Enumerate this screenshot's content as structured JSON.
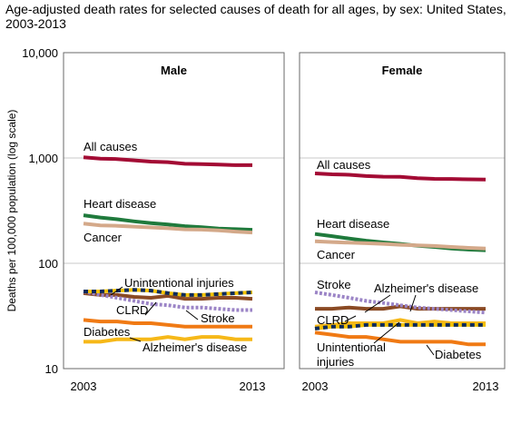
{
  "title": "Age-adjusted death rates for selected causes of death for all ages, by sex: United States, 2003-2013",
  "colors": {
    "all_causes": "#a30b34",
    "heart_disease": "#1f7a3c",
    "cancer": "#d4a98a",
    "unintentional_injuries": "#0d2a5c",
    "unintentional_injuries_dash": "#f2c200",
    "clrd": "#8a4a24",
    "stroke": "#9b84c6",
    "diabetes": "#f07a14",
    "alzheimers": "#f6b818",
    "grid": "#c8c8c8",
    "frame": "#6a6a6a"
  },
  "chart_data": [
    {
      "type": "line",
      "panel": "Male",
      "title": "Male",
      "ylabel": "Deaths per 100,000 population (log scale)",
      "y_scale": "log",
      "ylim": [
        10,
        10000
      ],
      "y_ticks": [
        "10",
        "100",
        "1,000",
        "10,000"
      ],
      "y_tick_values": [
        10,
        100,
        1000,
        10000
      ],
      "x_ticks": [
        "2003",
        "2013"
      ],
      "x": [
        2003,
        2004,
        2005,
        2006,
        2007,
        2008,
        2009,
        2010,
        2011,
        2012,
        2013
      ],
      "grid": true,
      "series": [
        {
          "name": "All causes",
          "key": "all_causes",
          "values": [
            1015,
            986,
            976,
            949,
            923,
            912,
            880,
            875,
            865,
            855,
            855
          ]
        },
        {
          "name": "Heart disease",
          "key": "heart_disease",
          "values": [
            286,
            272,
            262,
            250,
            241,
            234,
            225,
            220,
            214,
            211,
            208
          ]
        },
        {
          "name": "Cancer",
          "key": "cancer",
          "values": [
            238,
            229,
            227,
            223,
            219,
            215,
            210,
            209,
            205,
            200,
            196
          ]
        },
        {
          "name": "Unintentional injuries",
          "key": "unintentional_injuries",
          "values": [
            54,
            54,
            55,
            56,
            55,
            52,
            50,
            50,
            51,
            52,
            53
          ]
        },
        {
          "name": "CLRD",
          "key": "clrd",
          "values": [
            52,
            50,
            50,
            48,
            47,
            49,
            46,
            46,
            47,
            47,
            46
          ]
        },
        {
          "name": "Stroke",
          "key": "stroke",
          "values": [
            54,
            50,
            47,
            44,
            41,
            40,
            38,
            38,
            37,
            36,
            36
          ]
        },
        {
          "name": "Diabetes",
          "key": "diabetes",
          "values": [
            29,
            28,
            28,
            27,
            27,
            26,
            25,
            25,
            25,
            25,
            25
          ]
        },
        {
          "name": "Alzheimer's disease",
          "key": "alzheimers",
          "values": [
            18,
            18,
            19,
            19,
            19,
            20,
            19,
            20,
            20,
            19,
            19
          ]
        }
      ],
      "annotations": [
        {
          "text": "All causes",
          "series": "All causes"
        },
        {
          "text": "Heart disease",
          "series": "Heart disease"
        },
        {
          "text": "Cancer",
          "series": "Cancer"
        },
        {
          "text": "Unintentional injuries",
          "series": "Unintentional injuries"
        },
        {
          "text": "CLRD",
          "series": "CLRD"
        },
        {
          "text": "Stroke",
          "series": "Stroke"
        },
        {
          "text": "Diabetes",
          "series": "Diabetes"
        },
        {
          "text": "Alzheimer's disease",
          "series": "Alzheimer's disease"
        }
      ]
    },
    {
      "type": "line",
      "panel": "Female",
      "title": "Female",
      "y_scale": "log",
      "ylim": [
        10,
        10000
      ],
      "x_ticks": [
        "2003",
        "2013"
      ],
      "x": [
        2003,
        2004,
        2005,
        2006,
        2007,
        2008,
        2009,
        2010,
        2011,
        2012,
        2013
      ],
      "grid": true,
      "series": [
        {
          "name": "All causes",
          "key": "all_causes",
          "values": [
            714,
            700,
            692,
            674,
            664,
            662,
            642,
            634,
            632,
            627,
            624
          ]
        },
        {
          "name": "Heart disease",
          "key": "heart_disease",
          "values": [
            190,
            181,
            172,
            164,
            158,
            153,
            147,
            143,
            138,
            135,
            133
          ]
        },
        {
          "name": "Cancer",
          "key": "cancer",
          "values": [
            162,
            159,
            157,
            155,
            153,
            150,
            148,
            146,
            143,
            140,
            138
          ]
        },
        {
          "name": "Stroke",
          "key": "stroke",
          "values": [
            53,
            50,
            47,
            44,
            42,
            40,
            38,
            37,
            36,
            35,
            34
          ]
        },
        {
          "name": "Alzheimer's disease",
          "key": "alzheimers",
          "values": [
            25,
            26,
            27,
            27,
            27,
            29,
            27,
            28,
            27,
            27,
            27
          ]
        },
        {
          "name": "CLRD",
          "key": "clrd",
          "values": [
            37,
            37,
            38,
            37,
            37,
            39,
            37,
            37,
            37,
            37,
            37
          ]
        },
        {
          "name": "Unintentional injuries",
          "key": "unintentional_injuries",
          "values": [
            24,
            25,
            25,
            26,
            26,
            26,
            26,
            26,
            26,
            26,
            26
          ]
        },
        {
          "name": "Diabetes",
          "key": "diabetes",
          "values": [
            22,
            21,
            20,
            20,
            19,
            18,
            18,
            18,
            18,
            17,
            17
          ]
        }
      ],
      "annotations": [
        {
          "text": "All causes",
          "series": "All causes"
        },
        {
          "text": "Heart disease",
          "series": "Heart disease"
        },
        {
          "text": "Cancer",
          "series": "Cancer"
        },
        {
          "text": "Stroke",
          "series": "Stroke"
        },
        {
          "text": "Alzheimer's disease",
          "series": "Alzheimer's disease"
        },
        {
          "text": "CLRD",
          "series": "CLRD"
        },
        {
          "text": "Unintentional injuries",
          "series": "Unintentional injuries"
        },
        {
          "text": "Diabetes",
          "series": "Diabetes"
        }
      ]
    }
  ]
}
